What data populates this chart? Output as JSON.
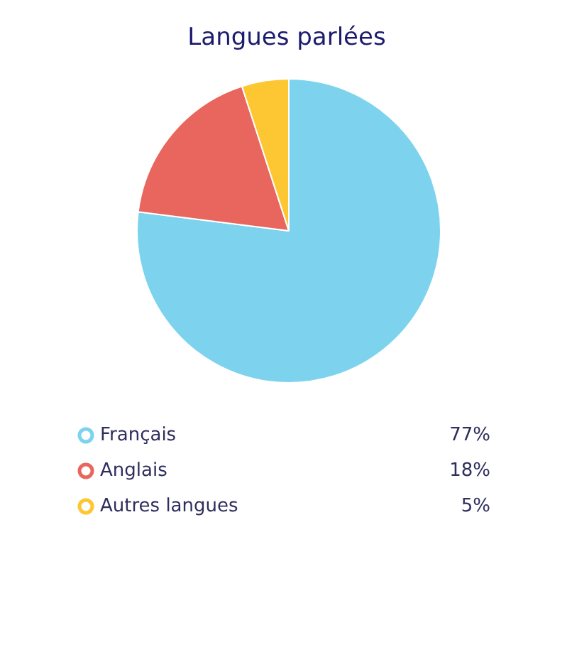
{
  "chart_data": {
    "type": "pie",
    "title": "Langues parlées",
    "categories": [
      "Français",
      "Anglais",
      "Autres langues"
    ],
    "values": [
      77,
      18,
      5
    ],
    "colors": [
      "#7dd3ee",
      "#e8665e",
      "#fdc633"
    ],
    "value_labels": [
      "77%",
      "18%",
      "5%"
    ],
    "legend": "bottom"
  }
}
